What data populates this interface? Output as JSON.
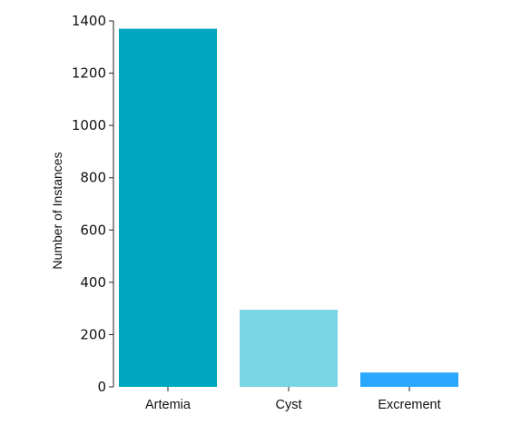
{
  "chart_data": {
    "type": "bar",
    "categories": [
      "Artemia",
      "Cyst",
      "Excrement"
    ],
    "values": [
      1370,
      295,
      55
    ],
    "colors": [
      "#00a7c0",
      "#79d4e4",
      "#2aa8ff"
    ],
    "ylabel": "Number of Instances",
    "ylim": [
      0,
      1400
    ],
    "yticks": [
      0,
      200,
      400,
      600,
      800,
      1000,
      1200,
      1400
    ],
    "grid": false,
    "legend": "none"
  }
}
